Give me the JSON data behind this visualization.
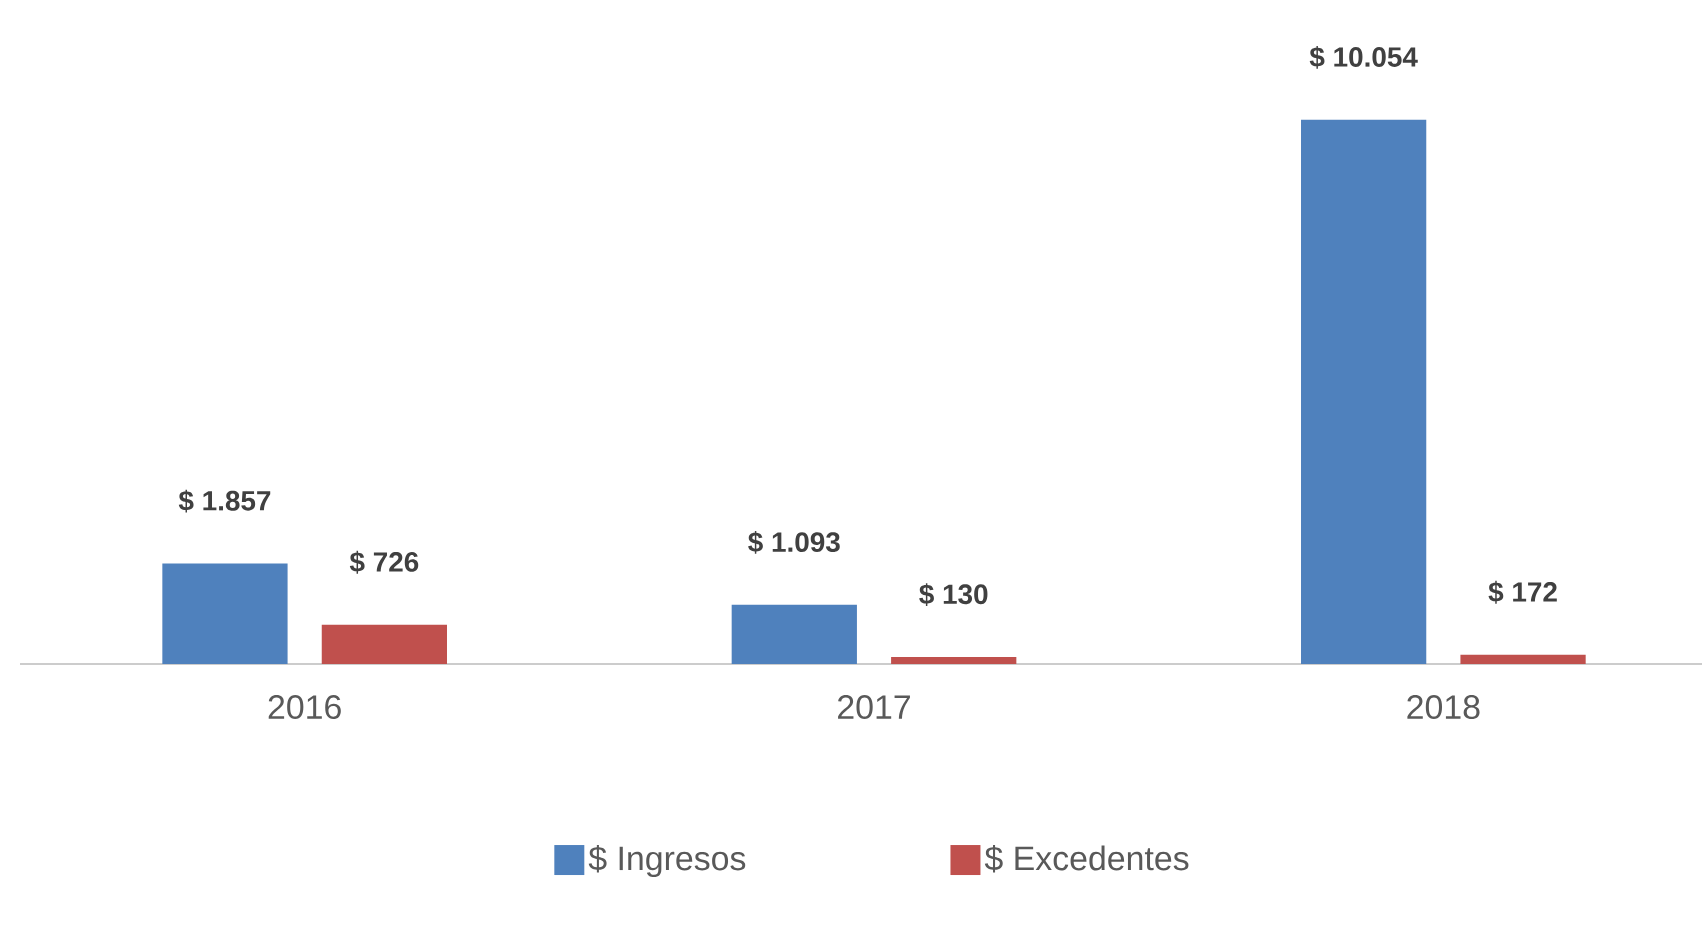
{
  "chart_data": {
    "type": "bar",
    "categories": [
      "2016",
      "2017",
      "2018"
    ],
    "series": [
      {
        "name": "$ Ingresos",
        "color": "#4f81bd",
        "values": [
          1857,
          1093,
          10054
        ],
        "value_labels": [
          "$ 1.857",
          "$ 1.093",
          "$ 10.054"
        ]
      },
      {
        "name": "$ Excedentes",
        "color": "#c0504d",
        "values": [
          726,
          130,
          172
        ],
        "value_labels": [
          "$ 726",
          "$ 130",
          "$ 172"
        ]
      }
    ],
    "legend": "bottom"
  }
}
